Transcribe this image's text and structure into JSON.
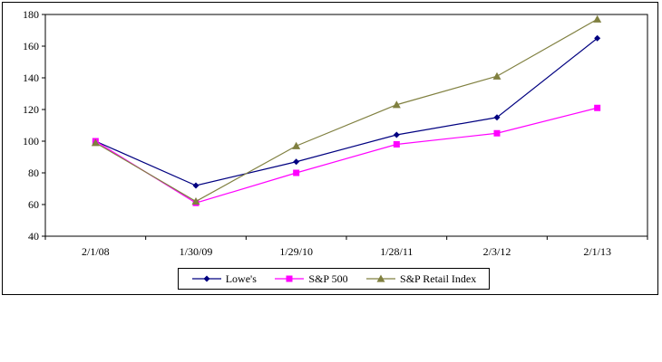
{
  "chart_data": {
    "type": "line",
    "categories": [
      "2/1/08",
      "1/30/09",
      "1/29/10",
      "1/28/11",
      "2/3/12",
      "2/1/13"
    ],
    "ylim": [
      40,
      180
    ],
    "yticks": [
      40,
      60,
      80,
      100,
      120,
      140,
      160,
      180
    ],
    "grid": false,
    "legend_position": "bottom",
    "series": [
      {
        "name": "Lowe's",
        "color": "#000080",
        "marker": "diamond",
        "values": [
          100,
          72,
          87,
          104,
          115,
          165
        ]
      },
      {
        "name": "S&P 500",
        "color": "#FF00FF",
        "marker": "square",
        "values": [
          100,
          61,
          80,
          98,
          105,
          121
        ]
      },
      {
        "name": "S&P Retail Index",
        "color": "#808040",
        "marker": "triangle",
        "values": [
          99,
          62,
          97,
          123,
          141,
          177
        ]
      }
    ]
  }
}
